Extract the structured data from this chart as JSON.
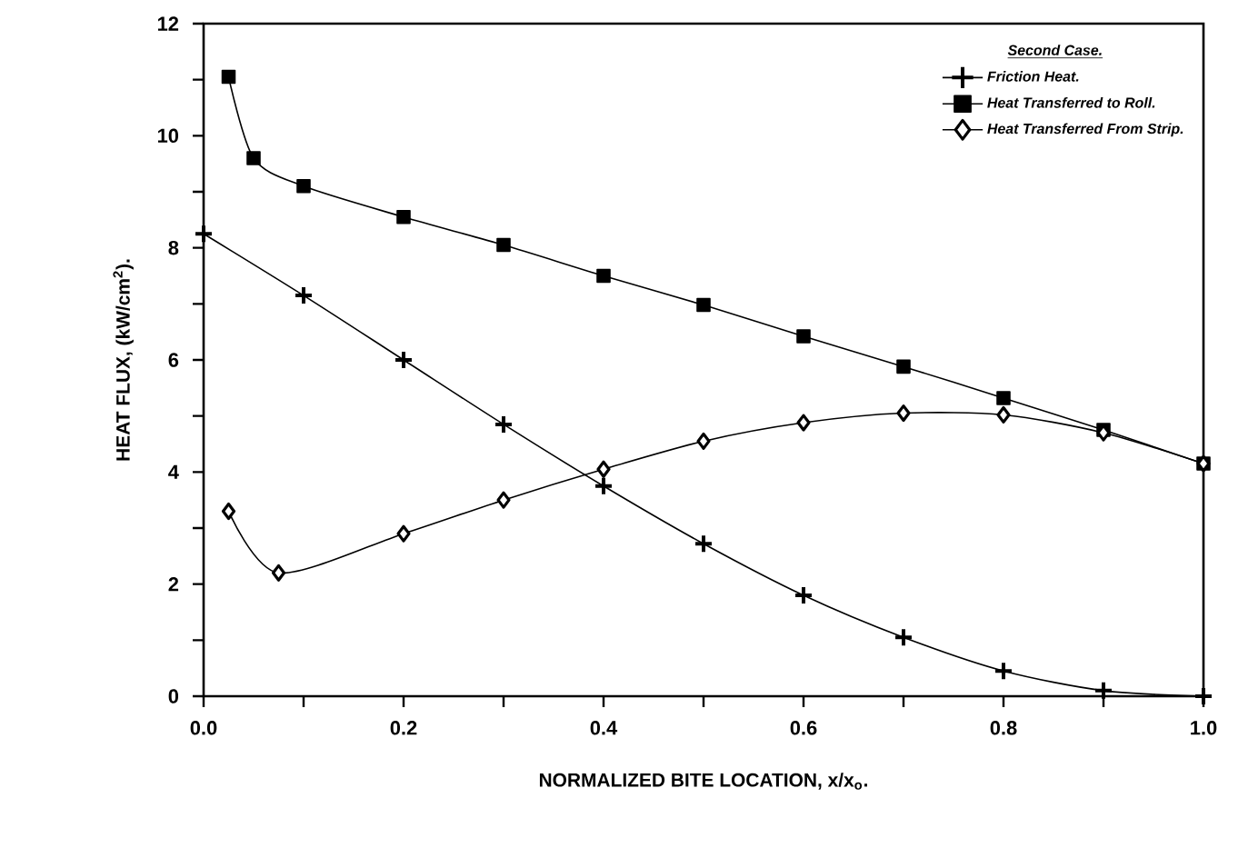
{
  "chart_data": {
    "type": "line",
    "xlabel": "NORMALIZED BITE LOCATION, x/x$_{o}$.",
    "ylabel": "HEAT FLUX, (kW/cm$^{2}$).",
    "legend_title": "Second Case.",
    "legend": "top right",
    "grid": false,
    "xlim": [
      0,
      1
    ],
    "ylim": [
      0,
      12
    ],
    "xticks": [
      {
        "value": 0,
        "label": "0.0"
      },
      {
        "value": 0.2,
        "label": "0.2"
      },
      {
        "value": 0.4,
        "label": "0.4"
      },
      {
        "value": 0.6,
        "label": "0.6"
      },
      {
        "value": 0.8,
        "label": "0.8"
      },
      {
        "value": 1,
        "label": "1.0"
      }
    ],
    "yticks": [
      0,
      2,
      4,
      6,
      8,
      10,
      12
    ],
    "series": [
      {
        "name": "Friction Heat.",
        "color": "#000000",
        "marker": "cross",
        "x": [
          0,
          0.1,
          0.2,
          0.3,
          0.4,
          0.5,
          0.6,
          0.7,
          0.8,
          0.9,
          1.0
        ],
        "values": [
          8.25,
          7.15,
          6.0,
          4.85,
          3.75,
          2.72,
          1.8,
          1.05,
          0.45,
          0.1,
          0.0
        ]
      },
      {
        "name": "Heat Transferred to Roll.",
        "color": "#000000",
        "marker": "square",
        "x": [
          0.025,
          0.05,
          0.1,
          0.2,
          0.3,
          0.4,
          0.5,
          0.6,
          0.7,
          0.8,
          0.9,
          1.0
        ],
        "values": [
          11.05,
          9.6,
          9.1,
          8.55,
          8.05,
          7.5,
          6.98,
          6.42,
          5.88,
          5.32,
          4.75,
          4.15
        ]
      },
      {
        "name": "Heat Transferred From Strip.",
        "color": "#000000",
        "marker": "diamond",
        "x": [
          0.025,
          0.075,
          0.2,
          0.3,
          0.4,
          0.5,
          0.6,
          0.7,
          0.8,
          0.9,
          1.0
        ],
        "values": [
          3.3,
          2.2,
          2.9,
          3.5,
          4.05,
          4.55,
          4.88,
          5.05,
          5.02,
          4.7,
          4.15
        ]
      }
    ]
  }
}
